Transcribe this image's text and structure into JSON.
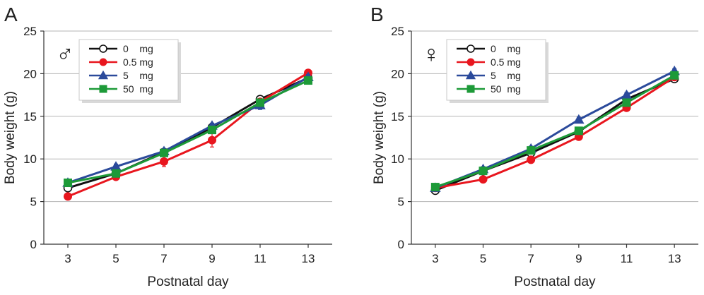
{
  "chart_data": [
    {
      "type": "line",
      "panel_label": "A",
      "sex_symbol": "♂",
      "xlabel": "Postnatal day",
      "ylabel": "Body weight  (g)",
      "x": [
        3,
        5,
        7,
        9,
        11,
        13
      ],
      "x_ticks": [
        "3",
        "5",
        "7",
        "9",
        "11",
        "13"
      ],
      "y_ticks": [
        "0",
        "5",
        "10",
        "15",
        "20",
        "25"
      ],
      "ylim": [
        0,
        25
      ],
      "grid": "horizontal",
      "legend_position": "top-left",
      "series": [
        {
          "name": "0    mg",
          "color": "#111111",
          "marker": "open-circle",
          "values": [
            6.6,
            8.3,
            10.8,
            13.7,
            17.0,
            19.5
          ],
          "error": [
            0.3,
            0.3,
            0.3,
            0.4,
            0.3,
            0.3
          ]
        },
        {
          "name": "0.5 mg",
          "color": "#e8161e",
          "marker": "circle",
          "values": [
            5.6,
            7.9,
            9.7,
            12.2,
            16.7,
            20.1
          ],
          "error": [
            0.3,
            0.3,
            0.6,
            0.8,
            0.3,
            0.3
          ]
        },
        {
          "name": "5    mg",
          "color": "#2b4a9b",
          "marker": "triangle",
          "values": [
            7.2,
            9.1,
            10.9,
            13.9,
            16.3,
            19.6
          ],
          "error": [
            0.3,
            0.3,
            0.3,
            0.3,
            0.5,
            0.3
          ]
        },
        {
          "name": "50  mg",
          "color": "#1d9a38",
          "marker": "square",
          "values": [
            7.2,
            8.3,
            10.7,
            13.4,
            16.6,
            19.2
          ],
          "error": [
            0.3,
            0.3,
            0.3,
            0.3,
            0.3,
            0.3
          ]
        }
      ]
    },
    {
      "type": "line",
      "panel_label": "B",
      "sex_symbol": "♀",
      "xlabel": "Postnatal day",
      "ylabel": "Body weight  (g)",
      "x": [
        3,
        5,
        7,
        9,
        11,
        13
      ],
      "x_ticks": [
        "3",
        "5",
        "7",
        "9",
        "11",
        "13"
      ],
      "y_ticks": [
        "0",
        "5",
        "10",
        "15",
        "20",
        "25"
      ],
      "ylim": [
        0,
        25
      ],
      "grid": "horizontal",
      "legend_position": "top-left",
      "series": [
        {
          "name": "0    mg",
          "color": "#111111",
          "marker": "open-circle",
          "values": [
            6.3,
            8.6,
            10.7,
            13.2,
            17.0,
            19.4
          ],
          "error": [
            0.3,
            0.3,
            0.3,
            0.3,
            0.3,
            0.3
          ]
        },
        {
          "name": "0.5 mg",
          "color": "#e8161e",
          "marker": "circle",
          "values": [
            6.6,
            7.6,
            9.9,
            12.6,
            16.0,
            19.6
          ],
          "error": [
            0.3,
            0.3,
            0.3,
            0.3,
            0.3,
            0.3
          ]
        },
        {
          "name": "5    mg",
          "color": "#2b4a9b",
          "marker": "triangle",
          "values": [
            6.6,
            8.8,
            11.2,
            14.6,
            17.5,
            20.3
          ],
          "error": [
            0.3,
            0.3,
            0.3,
            0.3,
            0.3,
            0.3
          ]
        },
        {
          "name": "50  mg",
          "color": "#1d9a38",
          "marker": "square",
          "values": [
            6.7,
            8.6,
            11.0,
            13.3,
            16.6,
            19.8
          ],
          "error": [
            0.3,
            0.3,
            0.3,
            0.3,
            0.3,
            0.3
          ]
        }
      ]
    }
  ]
}
